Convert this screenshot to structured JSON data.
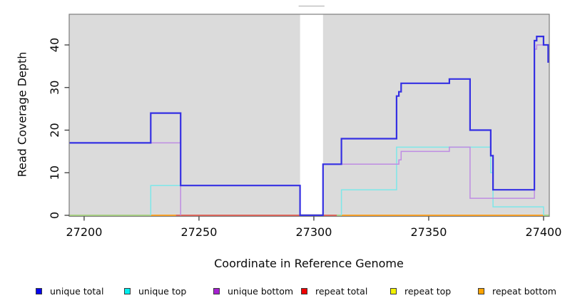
{
  "legend": [
    {
      "label": "unique total",
      "color": "#0505EF"
    },
    {
      "label": "unique top",
      "color": "#00EFEF"
    },
    {
      "label": "unique bottom",
      "color": "#A620D1"
    },
    {
      "label": "repeat total",
      "color": "#EF0000"
    },
    {
      "label": "repeat top",
      "color": "#F2F200"
    },
    {
      "label": "repeat bottom",
      "color": "#FFA300"
    }
  ],
  "chart_data": {
    "type": "line",
    "subtype": "step",
    "title": "",
    "xlabel": "Coordinate in Reference Genome",
    "ylabel": "Read Coverage Depth",
    "xlim": [
      27193.5,
      27402.5
    ],
    "ylim": [
      0,
      47.2
    ],
    "x_ticks": [
      27200,
      27250,
      27300,
      27350,
      27400
    ],
    "y_ticks": [
      0,
      10,
      20,
      30,
      40
    ],
    "plot_bg": "#DBDBDB",
    "grid": "off",
    "legend_position": "bottom",
    "masked_region": {
      "x1": 27294,
      "x2": 27304
    },
    "series": [
      {
        "name": "repeat total",
        "color": "#E03030",
        "width": 1.4,
        "parts": [
          [
            [
              27193.5,
              0
            ],
            [
              27402.5,
              0
            ]
          ]
        ]
      },
      {
        "name": "repeat top",
        "color": "#F0F000",
        "width": 1.4,
        "parts": [
          [
            [
              27193.5,
              0
            ],
            [
              27402.5,
              0
            ]
          ]
        ]
      },
      {
        "name": "repeat bottom",
        "color": "#FFA020",
        "width": 1.4,
        "parts": [
          [
            [
              27193.5,
              0
            ],
            [
              27402.5,
              0
            ]
          ]
        ]
      },
      {
        "name": "unique top",
        "color": "#7DE7E9",
        "width": 1.5,
        "parts": [
          [
            [
              27229,
              0
            ],
            [
              27229,
              7
            ],
            [
              27294,
              7
            ],
            [
              27294,
              0
            ]
          ],
          [
            [
              27312,
              0
            ],
            [
              27312,
              6
            ],
            [
              27336,
              6
            ],
            [
              27336,
              16
            ],
            [
              27377,
              16
            ],
            [
              27377,
              10
            ],
            [
              27378,
              10
            ],
            [
              27378,
              2
            ],
            [
              27400,
              2
            ],
            [
              27400,
              0
            ]
          ]
        ]
      },
      {
        "name": "unique bottom",
        "color": "#BE8CE2",
        "width": 1.5,
        "parts": [
          [
            [
              27193.5,
              17
            ],
            [
              27242,
              17
            ],
            [
              27242,
              0
            ]
          ],
          [
            [
              27304,
              0
            ],
            [
              27304,
              12
            ],
            [
              27337,
              12
            ],
            [
              27337,
              13
            ],
            [
              27338,
              13
            ],
            [
              27338,
              15
            ],
            [
              27359,
              15
            ],
            [
              27359,
              16
            ],
            [
              27368,
              16
            ],
            [
              27368,
              4
            ],
            [
              27396,
              4
            ],
            [
              27396,
              39
            ],
            [
              27397,
              39
            ],
            [
              27397,
              40
            ],
            [
              27402,
              40
            ],
            [
              27402,
              36
            ],
            [
              27402.5,
              36
            ]
          ]
        ]
      },
      {
        "name": "unique total",
        "color": "#3530E3",
        "width": 2.2,
        "parts": [
          [
            [
              27193.5,
              17
            ],
            [
              27229,
              17
            ],
            [
              27229,
              24
            ],
            [
              27242,
              24
            ],
            [
              27242,
              7
            ],
            [
              27294,
              7
            ],
            [
              27294,
              0
            ],
            [
              27304,
              0
            ],
            [
              27304,
              12
            ],
            [
              27312,
              12
            ],
            [
              27312,
              18
            ],
            [
              27336,
              18
            ],
            [
              27336,
              28
            ],
            [
              27337,
              28
            ],
            [
              27337,
              29
            ],
            [
              27338,
              29
            ],
            [
              27338,
              31
            ],
            [
              27359,
              31
            ],
            [
              27359,
              32
            ],
            [
              27368,
              32
            ],
            [
              27368,
              20
            ],
            [
              27377,
              20
            ],
            [
              27377,
              14
            ],
            [
              27378,
              14
            ],
            [
              27378,
              6
            ],
            [
              27396,
              6
            ],
            [
              27396,
              41
            ],
            [
              27397,
              41
            ],
            [
              27397,
              42
            ],
            [
              27400,
              42
            ],
            [
              27400,
              40
            ],
            [
              27402,
              40
            ],
            [
              27402,
              36
            ],
            [
              27402.5,
              36
            ]
          ]
        ]
      }
    ],
    "zero_line_segments": [
      {
        "x1": 27193.5,
        "x2": 27229,
        "color": "#92DE9E"
      },
      {
        "x1": 27229,
        "x2": 27240,
        "color": "#FFA024"
      },
      {
        "x1": 27240,
        "x2": 27294,
        "color": "#DB5068"
      },
      {
        "x1": 27304,
        "x2": 27310,
        "color": "#DB5068"
      },
      {
        "x1": 27310,
        "x2": 27312,
        "color": "#92DE9E"
      },
      {
        "x1": 27312,
        "x2": 27400,
        "color": "#FFA024"
      },
      {
        "x1": 27400,
        "x2": 27402.5,
        "color": "#92DE9E"
      }
    ]
  }
}
